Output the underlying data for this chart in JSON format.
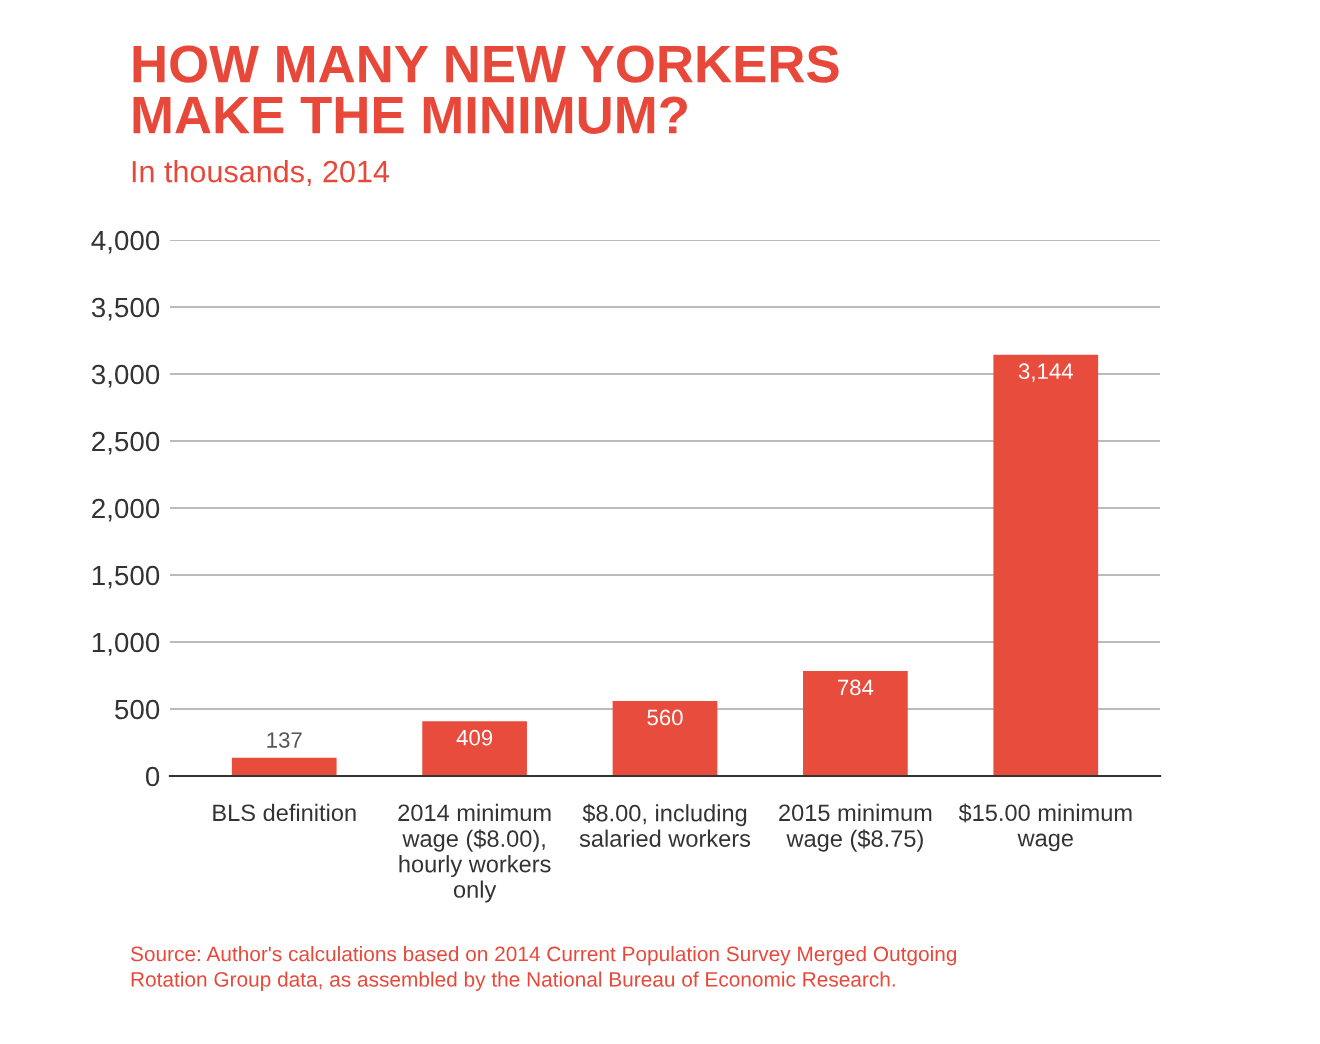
{
  "chart_data": {
    "type": "bar",
    "title": "HOW MANY NEW YORKERS\nMAKE THE MINIMUM?",
    "subtitle": "In thousands, 2014",
    "categories": [
      "BLS definition",
      "2014 minimum\nwage ($8.00),\nhourly workers\nonly",
      "$8.00, including\nsalaried workers",
      "2015 minimum\nwage ($8.75)",
      "$15.00 minimum\nwage"
    ],
    "values": [
      137,
      409,
      560,
      784,
      3144
    ],
    "color": "#e84c3d",
    "ylim": [
      0,
      4000
    ],
    "yticks": [
      {
        "value": 0,
        "label": "0"
      },
      {
        "value": 500,
        "label": "500"
      },
      {
        "value": 1000,
        "label": "1,000"
      },
      {
        "value": 1500,
        "label": "1,500"
      },
      {
        "value": 2000,
        "label": "2,000"
      },
      {
        "value": 2500,
        "label": "2,500"
      },
      {
        "value": 3000,
        "label": "3,000"
      },
      {
        "value": 3500,
        "label": "3,500"
      },
      {
        "value": 4000,
        "label": "4,000"
      }
    ],
    "value_labels": [
      "137",
      "409",
      "560",
      "784",
      "3,144"
    ],
    "grid": "y",
    "annotations": [
      "Source: Author's calculations based on 2014 Current Population Survey Merged Outgoing\nRotation Group data, as assembled by the National Bureau of Economic Research."
    ]
  }
}
